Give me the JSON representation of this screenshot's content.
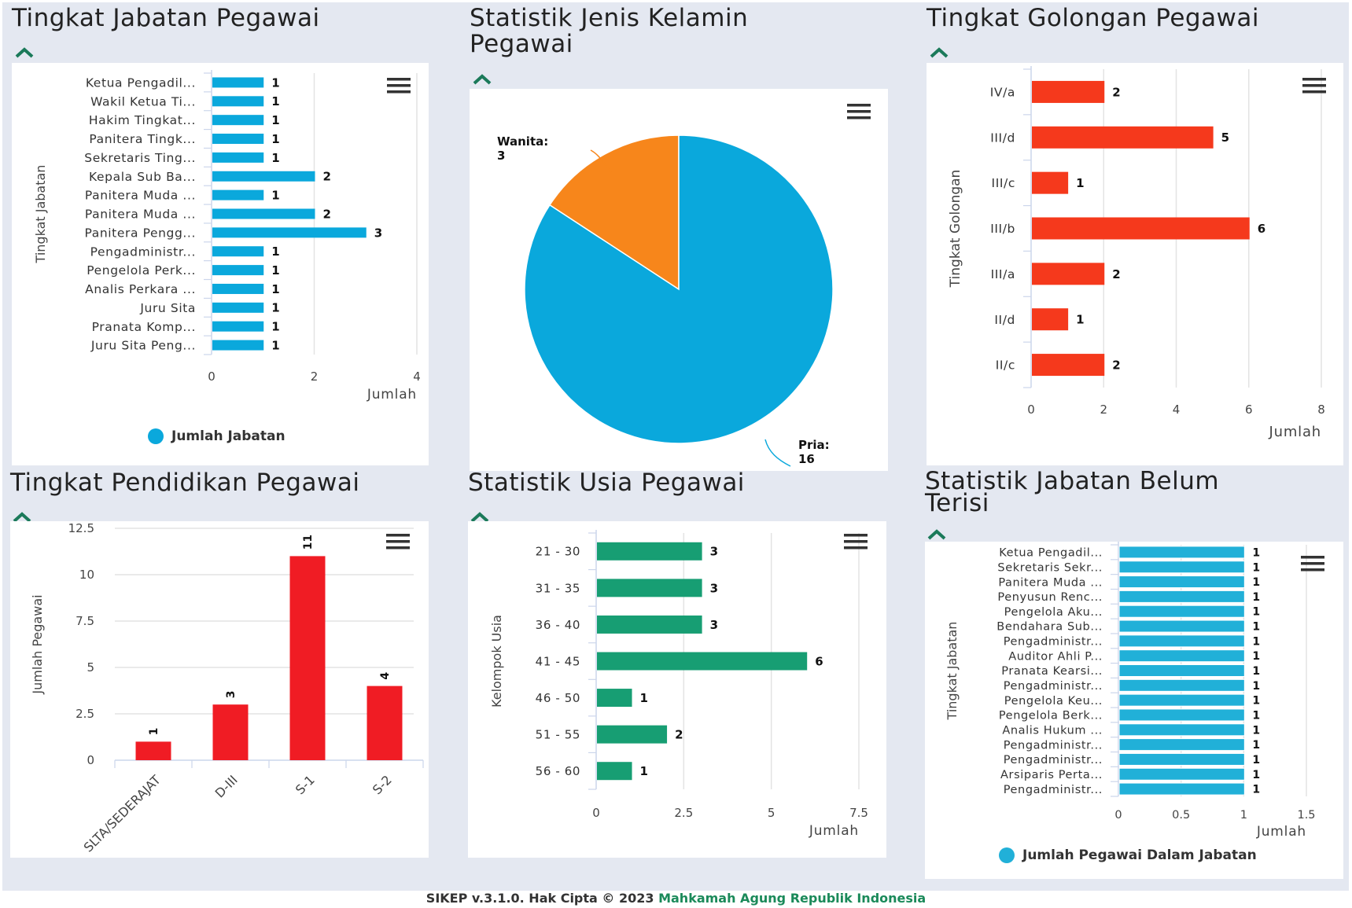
{
  "panels": {
    "jabatan": {
      "title": "Tingkat Jabatan Pegawai",
      "legend": "Jumlah Jabatan",
      "color": "#0aa8dc"
    },
    "kelamin": {
      "title_line1": "Statistik Jenis Kelamin",
      "title_line2": "Pegawai"
    },
    "golongan": {
      "title": "Tingkat Golongan Pegawai",
      "color": "#f5391c"
    },
    "pendidikan": {
      "title": "Tingkat Pendidikan Pegawai",
      "color": "#f01c24"
    },
    "usia": {
      "title": "Statistik Usia Pegawai",
      "color": "#179e73"
    },
    "belum": {
      "title_line1": "Statistik Jabatan Belum",
      "title_line2": "Terisi",
      "legend": "Jumlah Pegawai Dalam Jabatan",
      "color": "#21b0d8"
    }
  },
  "icons": {
    "collapse": "chevron-up-icon",
    "menu": "hamburger-menu-icon",
    "collapse_color": "#1b7a5a"
  },
  "footer": {
    "text": "SIKEP v.3.1.0. Hak Cipta © 2023 ",
    "link": "Mahkamah Agung Republik Indonesia"
  },
  "chart_data": [
    {
      "id": "jabatan",
      "type": "bar",
      "orientation": "horizontal",
      "title": "Tingkat Jabatan Pegawai",
      "ylabel": "Tingkat Jabatan",
      "xlabel": "Jumlah",
      "categories": [
        "Ketua Pengadil...",
        "Wakil Ketua Ti...",
        "Hakim Tingkat...",
        "Panitera Tingk...",
        "Sekretaris Ting...",
        "Kepala Sub Ba...",
        "Panitera Muda ...",
        "Panitera Muda ...",
        "Panitera Pengg...",
        "Pengadministr...",
        "Pengelola Perk...",
        "Analis Perkara ...",
        "Juru Sita",
        "Pranata Komp...",
        "Juru Sita Peng..."
      ],
      "values": [
        1,
        1,
        1,
        1,
        1,
        2,
        1,
        2,
        3,
        1,
        1,
        1,
        1,
        1,
        1
      ],
      "xticks": [
        0,
        2,
        4
      ],
      "xlim": [
        0,
        4
      ],
      "legend": "Jumlah Jabatan",
      "legend_position": "bottom"
    },
    {
      "id": "kelamin",
      "type": "pie",
      "title": "Statistik Jenis Kelamin Pegawai",
      "slices": [
        {
          "label": "Wanita",
          "value": 3,
          "color": "#f7861b"
        },
        {
          "label": "Pria",
          "value": 16,
          "color": "#0aa8dc"
        }
      ]
    },
    {
      "id": "golongan",
      "type": "bar",
      "orientation": "horizontal",
      "title": "Tingkat Golongan Pegawai",
      "ylabel": "Tingkat Golongan",
      "xlabel": "Jumlah",
      "categories": [
        "IV/a",
        "III/d",
        "III/c",
        "III/b",
        "III/a",
        "II/d",
        "II/c"
      ],
      "values": [
        2,
        5,
        1,
        6,
        2,
        1,
        2
      ],
      "xticks": [
        0,
        2,
        4,
        6,
        8
      ],
      "xlim": [
        0,
        8
      ]
    },
    {
      "id": "pendidikan",
      "type": "bar",
      "orientation": "vertical",
      "title": "Tingkat Pendidikan Pegawai",
      "ylabel": "Jumlah Pegawai",
      "categories": [
        "SLTA/SEDERAJAT",
        "D-III",
        "S-1",
        "S-2"
      ],
      "values": [
        1,
        3,
        11,
        4
      ],
      "yticks": [
        "0",
        "2.5",
        "5",
        "7.5",
        "10",
        "12.5"
      ],
      "ylim": [
        0,
        12.5
      ]
    },
    {
      "id": "usia",
      "type": "bar",
      "orientation": "horizontal",
      "title": "Statistik Usia Pegawai",
      "ylabel": "Kelompok Usia",
      "xlabel": "Jumlah",
      "categories": [
        "21 - 30",
        "31 - 35",
        "36 - 40",
        "41 - 45",
        "46 - 50",
        "51 - 55",
        "56 - 60"
      ],
      "values": [
        3,
        3,
        3,
        6,
        1,
        2,
        1
      ],
      "xticks": [
        "0",
        "2.5",
        "5",
        "7.5"
      ],
      "xlim": [
        0,
        7.5
      ]
    },
    {
      "id": "belum",
      "type": "bar",
      "orientation": "horizontal",
      "title": "Statistik Jabatan Belum Terisi",
      "ylabel": "Tingkat Jabatan",
      "xlabel": "Jumlah",
      "categories": [
        "Ketua Pengadil...",
        "Sekretaris Sekr...",
        "Panitera Muda ...",
        "Penyusun Renc...",
        "Pengelola Aku...",
        "Bendahara Sub...",
        "Pengadministr...",
        "Auditor Ahli P...",
        "Pranata Kearsi...",
        "Pengadministr...",
        "Pengelola Keu...",
        "Pengelola Berk...",
        "Analis Hukum ...",
        "Pengadministr...",
        "Pengadministr...",
        "Arsiparis Perta...",
        "Pengadministr..."
      ],
      "values": [
        1,
        1,
        1,
        1,
        1,
        1,
        1,
        1,
        1,
        1,
        1,
        1,
        1,
        1,
        1,
        1,
        1
      ],
      "xticks": [
        "0",
        "0.5",
        "1",
        "1.5"
      ],
      "xlim": [
        0,
        1.5
      ],
      "legend": "Jumlah Pegawai Dalam Jabatan",
      "legend_position": "bottom"
    }
  ]
}
